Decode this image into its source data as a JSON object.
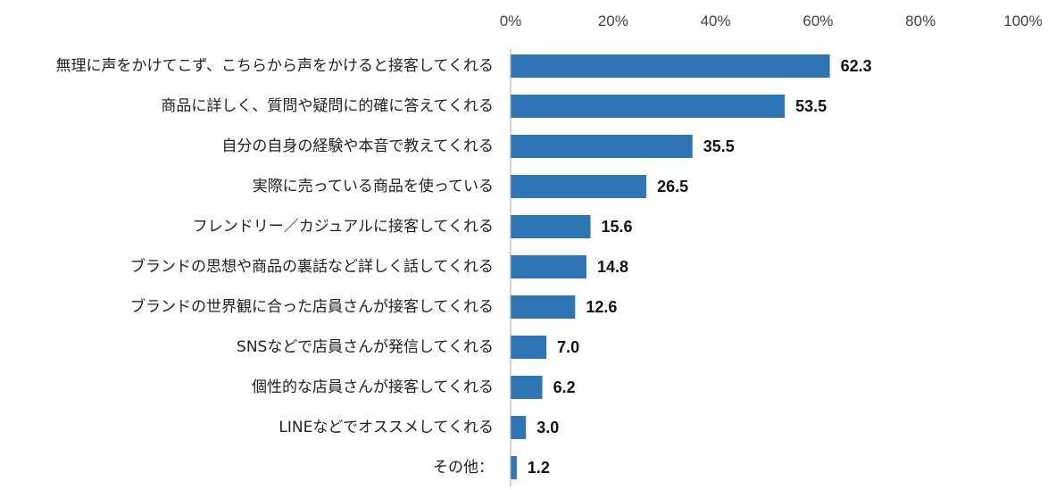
{
  "chart_data": {
    "type": "bar",
    "orientation": "horizontal",
    "categories": [
      "無理に声をかけてこず、こちらから声をかけると接客してくれる",
      "商品に詳しく、質問や疑問に的確に答えてくれる",
      "自分の自身の経験や本音で教えてくれる",
      "実際に売っている商品を使っている",
      "フレンドリー／カジュアルに接客してくれる",
      "ブランドの思想や商品の裏話など詳しく話してくれる",
      "ブランドの世界観に合った店員さんが接客してくれる",
      "SNSなどで店員さんが発信してくれる",
      "個性的な店員さんが接客してくれる",
      "LINEなどでオススメしてくれる",
      "その他："
    ],
    "values": [
      62.3,
      53.5,
      35.5,
      26.5,
      15.6,
      14.8,
      12.6,
      7.0,
      6.2,
      3.0,
      1.2
    ],
    "value_labels": [
      "62.3",
      "53.5",
      "35.5",
      "26.5",
      "15.6",
      "14.8",
      "12.6",
      "7.0",
      "6.2",
      "3.0",
      "1.2"
    ],
    "x_ticks": [
      "0%",
      "20%",
      "40%",
      "60%",
      "80%",
      "100%"
    ],
    "xlim": [
      0,
      100
    ],
    "x_axis_position": "top",
    "grid": false,
    "legend": "none",
    "bar_color": "#2e75b6",
    "title": "",
    "xlabel": "",
    "ylabel": ""
  }
}
